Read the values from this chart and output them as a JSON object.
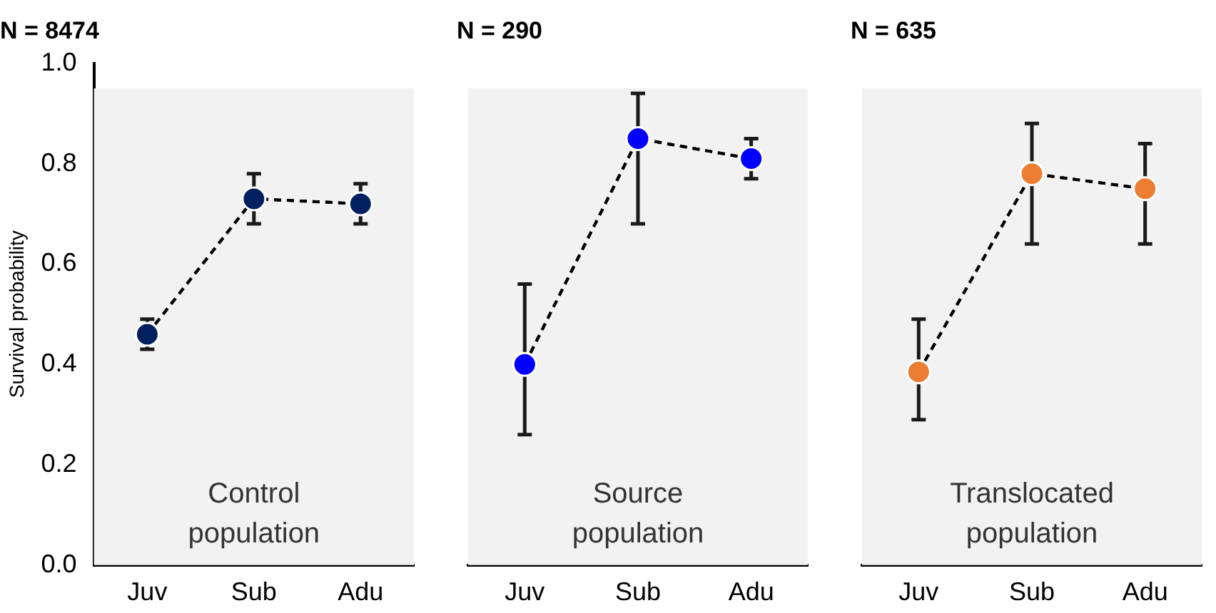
{
  "chart_data": [
    {
      "type": "line",
      "title": "N = 8474",
      "ylabel": "Survival probability",
      "categories": [
        "Juv",
        "Sub",
        "Adu"
      ],
      "series": [
        {
          "color": "#002060",
          "values": [
            0.46,
            0.73,
            0.72
          ],
          "errors": [
            [
              0.43,
              0.49
            ],
            [
              0.68,
              0.78
            ],
            [
              0.68,
              0.76
            ]
          ]
        }
      ],
      "ylim": [
        0,
        1
      ],
      "yticks": [
        {
          "value": 0,
          "label": "0.0"
        },
        {
          "value": 0.2,
          "label": "0.2"
        },
        {
          "value": 0.4,
          "label": "0.4"
        },
        {
          "value": 0.6,
          "label": "0.6"
        },
        {
          "value": 0.8,
          "label": "0.8"
        },
        {
          "value": 1,
          "label": "1.0"
        }
      ],
      "bands": [
        {
          "axis": "y",
          "from": 0,
          "to": 0.95,
          "color": "#f2f2f2"
        }
      ],
      "annotations": [
        "Control population"
      ],
      "marker": "circle",
      "line_style": "dashed",
      "grid": false,
      "legend": false
    },
    {
      "type": "line",
      "title": "N = 290",
      "categories": [
        "Juv",
        "Sub",
        "Adu"
      ],
      "series": [
        {
          "color": "#0000ff",
          "values": [
            0.4,
            0.85,
            0.81
          ],
          "errors": [
            [
              0.26,
              0.56
            ],
            [
              0.68,
              0.94
            ],
            [
              0.77,
              0.85
            ]
          ]
        }
      ],
      "ylim": [
        0,
        1
      ],
      "tick_labels": "x",
      "bands": [
        {
          "axis": "y",
          "from": 0,
          "to": 0.95,
          "color": "#f2f2f2"
        }
      ],
      "annotations": [
        "Source population"
      ],
      "marker": "circle",
      "line_style": "dashed",
      "grid": false,
      "legend": false
    },
    {
      "type": "line",
      "title": "N = 635",
      "categories": [
        "Juv",
        "Sub",
        "Adu"
      ],
      "series": [
        {
          "color": "#ed7d31",
          "values": [
            0.385,
            0.78,
            0.75
          ],
          "errors": [
            [
              0.29,
              0.49
            ],
            [
              0.64,
              0.88
            ],
            [
              0.64,
              0.84
            ]
          ]
        }
      ],
      "ylim": [
        0,
        1
      ],
      "tick_labels": "x",
      "bands": [
        {
          "axis": "y",
          "from": 0,
          "to": 0.95,
          "color": "#f2f2f2"
        }
      ],
      "annotations": [
        "Translocated population"
      ],
      "marker": "circle",
      "line_style": "dashed",
      "grid": false,
      "legend": false
    }
  ]
}
